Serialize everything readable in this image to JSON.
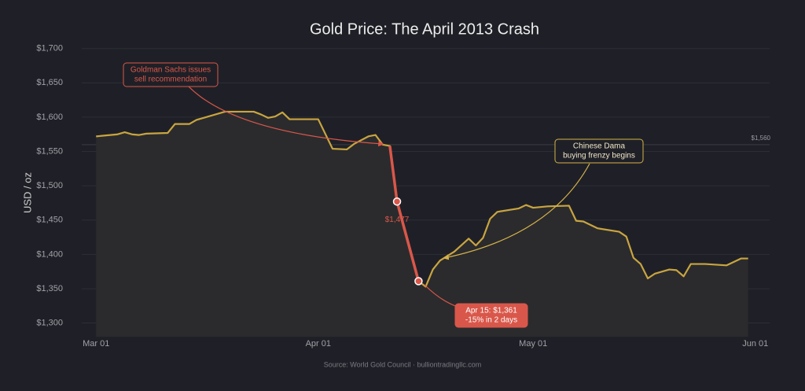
{
  "chart_data": {
    "type": "line",
    "title": "Gold Price: The April 2013 Crash",
    "ylabel": "USD / oz",
    "source": "Source: World Gold Council · bulliontradingllc.com",
    "x": [
      0,
      3,
      4,
      5,
      6,
      7,
      10,
      11,
      13,
      14,
      18,
      22,
      23,
      24,
      25,
      26,
      27,
      31,
      33,
      35,
      36,
      38,
      39,
      40,
      41,
      42,
      45,
      46,
      47,
      48,
      50,
      52,
      53,
      54,
      55,
      56,
      59,
      60,
      61,
      63,
      66,
      67,
      68,
      70,
      73,
      74,
      75,
      76,
      77,
      78,
      80,
      81,
      82,
      83,
      85,
      88,
      90,
      91
    ],
    "series": [
      {
        "color": "#c9a540",
        "values": [
          1572,
          1575,
          1578,
          1575,
          1574,
          1576,
          1577,
          1590,
          1590,
          1596,
          1608,
          1608,
          1604,
          1599,
          1601,
          1607,
          1597,
          1597,
          1554,
          1553,
          1561,
          1572,
          1574,
          1560,
          1558,
          1477,
          1361,
          1353,
          1378,
          1391,
          1404,
          1423,
          1413,
          1424,
          1452,
          1462,
          1467,
          1472,
          1468,
          1470,
          1471,
          1449,
          1448,
          1438,
          1433,
          1426,
          1395,
          1386,
          1365,
          1372,
          1378,
          1377,
          1368,
          1386,
          1386,
          1384,
          1394,
          1394
        ],
        "value_labels": [
          null,
          null,
          null,
          null,
          null,
          null,
          null,
          null,
          null,
          null,
          null,
          null,
          null,
          null,
          null,
          null,
          null,
          null,
          null,
          null,
          null,
          null,
          null,
          null,
          null,
          "$1,477",
          null,
          null,
          null,
          null,
          null,
          null,
          null,
          null,
          null,
          null,
          null,
          null,
          null,
          null,
          null,
          null,
          null,
          null,
          null,
          null,
          null,
          null,
          null,
          null,
          null,
          null,
          null,
          null,
          null,
          null,
          null,
          null
        ],
        "highlight": {
          "from": 24,
          "to": 26,
          "color": "#d9574a"
        }
      }
    ],
    "xlim": [
      -2,
      94
    ],
    "xticks": [
      {
        "value": 0,
        "label": "Mar 01"
      },
      {
        "value": 31,
        "label": "Apr 01"
      },
      {
        "value": 61,
        "label": "May 01"
      },
      {
        "value": 92,
        "label": "Jun 01"
      }
    ],
    "ylim": [
      1280,
      1710
    ],
    "yticks": [
      {
        "value": 1300,
        "label": "$1,300"
      },
      {
        "value": 1350,
        "label": "$1,350"
      },
      {
        "value": 1400,
        "label": "$1,400"
      },
      {
        "value": 1450,
        "label": "$1,450"
      },
      {
        "value": 1500,
        "label": "$1,500"
      },
      {
        "value": 1550,
        "label": "$1,550"
      },
      {
        "value": 1600,
        "label": "$1,600"
      },
      {
        "value": 1650,
        "label": "$1,650"
      },
      {
        "value": 1700,
        "label": "$1,700"
      }
    ],
    "grid": true,
    "reference_line": {
      "value": 1560,
      "label": "$1,560"
    },
    "annotations": [
      {
        "lines": [
          "Goldman Sachs issues",
          "sell recommendation"
        ],
        "color": "#d9574a"
      },
      {
        "lines": [
          "Chinese Dama",
          "buying frenzy begins"
        ],
        "color": "#d4b24a"
      },
      {
        "lines": [
          "Apr 15: $1,361",
          "-15% in 2 days"
        ],
        "color": "#d9574a"
      }
    ]
  }
}
